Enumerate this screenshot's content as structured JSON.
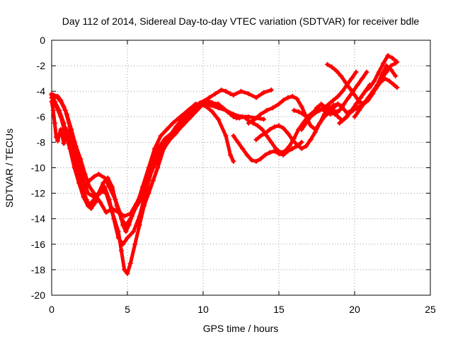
{
  "chart_data": {
    "type": "scatter",
    "title": "Day 112 of 2014, Sidereal Day-to-day VTEC variation (SDTVAR) for receiver bdle",
    "xlabel": "GPS time / hours",
    "ylabel": "SDTVAR / TECUs",
    "xlim": [
      0,
      25
    ],
    "ylim": [
      -20,
      0
    ],
    "xticks": [
      0,
      5,
      10,
      15,
      20,
      25
    ],
    "yticks": [
      0,
      -2,
      -4,
      -6,
      -8,
      -10,
      -12,
      -14,
      -16,
      -18,
      -20
    ],
    "grid": true,
    "marker": "plus",
    "series_color": "#ff0000",
    "series": [
      {
        "x": [
          0.0,
          0.2,
          0.5,
          0.8,
          1.0,
          1.3,
          1.6,
          1.8,
          2.0,
          2.2,
          2.5,
          2.8,
          3.1,
          3.5,
          3.8,
          4.2,
          4.5,
          4.7,
          4.9,
          5.1,
          5.3,
          5.6,
          6.0,
          6.4,
          6.8,
          7.2,
          7.6,
          8.0,
          8.5,
          9.0,
          9.5,
          10.0,
          10.5,
          11.0,
          11.5,
          12.0,
          12.5,
          13.0,
          13.5,
          14.0
        ],
        "y": [
          -4.3,
          -4.8,
          -5.5,
          -6.5,
          -7.5,
          -8.5,
          -9.5,
          -10.5,
          -11.2,
          -11.5,
          -11.0,
          -10.7,
          -10.5,
          -10.8,
          -11.5,
          -12.5,
          -13.5,
          -14.5,
          -15.0,
          -14.5,
          -13.8,
          -13.0,
          -11.5,
          -10.0,
          -8.5,
          -7.5,
          -7.0,
          -6.5,
          -6.0,
          -5.5,
          -5.0,
          -5.0,
          -5.1,
          -5.3,
          -5.5,
          -5.8,
          -6.0,
          -6.0,
          -6.1,
          -6.2
        ]
      },
      {
        "x": [
          0.0,
          0.3,
          0.6,
          0.9,
          1.2,
          1.5,
          1.8,
          2.1,
          2.4,
          2.8,
          3.2,
          3.6,
          4.0,
          4.4,
          4.6,
          4.8,
          5.0,
          5.2,
          5.5,
          5.8,
          6.1,
          6.4,
          6.7,
          7.0,
          7.4,
          7.8,
          8.2,
          8.6,
          9.0,
          9.4,
          9.8,
          10.2,
          10.6,
          11.0,
          11.5,
          11.8,
          12.0
        ],
        "y": [
          -4.5,
          -5.2,
          -6.0,
          -7.3,
          -8.5,
          -10.0,
          -11.2,
          -12.3,
          -13.0,
          -12.5,
          -11.8,
          -12.0,
          -13.5,
          -15.0,
          -16.5,
          -18.0,
          -18.3,
          -17.5,
          -16.0,
          -14.5,
          -13.0,
          -12.0,
          -11.0,
          -10.0,
          -8.5,
          -7.8,
          -7.3,
          -6.7,
          -6.0,
          -5.4,
          -5.0,
          -5.2,
          -5.6,
          -6.2,
          -7.5,
          -9.0,
          -9.5
        ]
      },
      {
        "x": [
          0.0,
          0.3,
          0.6,
          0.9,
          1.2,
          1.5,
          1.8,
          2.1,
          2.4,
          2.8,
          3.2,
          3.5,
          3.8,
          4.1,
          4.4,
          4.7,
          5.0,
          5.4,
          5.8,
          6.2,
          6.6,
          7.0,
          7.5,
          8.0,
          8.5,
          9.0,
          9.5,
          10.0,
          10.4,
          10.8,
          11.2,
          11.5,
          11.8,
          12.0,
          12.5,
          13.0,
          13.5,
          14.0,
          14.5
        ],
        "y": [
          -4.2,
          -4.4,
          -4.8,
          -5.5,
          -6.8,
          -8.0,
          -9.5,
          -11.0,
          -12.0,
          -12.3,
          -12.0,
          -11.5,
          -12.5,
          -14.0,
          -15.5,
          -16.0,
          -15.5,
          -15.0,
          -13.8,
          -12.0,
          -10.0,
          -8.5,
          -7.7,
          -7.2,
          -6.7,
          -6.0,
          -5.3,
          -4.8,
          -4.5,
          -4.2,
          -3.9,
          -4.0,
          -4.2,
          -4.3,
          -4.0,
          -4.2,
          -4.5,
          -4.1,
          -3.9
        ]
      },
      {
        "x": [
          0.0,
          0.1,
          0.2,
          0.3,
          0.4,
          0.5,
          0.6,
          0.7,
          0.8,
          0.9,
          1.0,
          1.2,
          1.4,
          1.6,
          1.8,
          2.0,
          2.3,
          2.6,
          2.9,
          3.1,
          3.4,
          3.7,
          4.0,
          4.3,
          4.6,
          4.9,
          5.2,
          5.5,
          5.9,
          6.3,
          6.6,
          7.0,
          7.4,
          7.8,
          8.2,
          8.6,
          9.0,
          9.4,
          9.8,
          10.2,
          10.6,
          11.0,
          11.4
        ],
        "y": [
          -4.8,
          -5.5,
          -6.5,
          -7.6,
          -7.9,
          -7.4,
          -7.0,
          -7.5,
          -8.1,
          -7.5,
          -7.0,
          -7.5,
          -8.5,
          -9.5,
          -10.5,
          -11.5,
          -12.5,
          -13.2,
          -12.7,
          -12.0,
          -11.2,
          -10.8,
          -11.5,
          -13.0,
          -14.0,
          -14.5,
          -14.0,
          -13.2,
          -12.5,
          -11.5,
          -10.3,
          -9.3,
          -8.5,
          -7.5,
          -6.8,
          -6.2,
          -5.7,
          -5.2,
          -4.9,
          -4.7,
          -4.9,
          -5.2,
          -5.4
        ]
      },
      {
        "x": [
          0.0,
          0.2,
          0.4,
          0.6,
          0.8,
          1.0,
          1.3,
          1.6,
          1.9,
          2.2,
          2.5,
          2.8,
          3.2,
          3.6,
          4.0,
          4.4,
          4.8,
          5.2,
          5.6,
          6.0,
          6.4,
          6.8,
          7.2,
          7.6,
          8.0,
          8.4,
          8.8,
          9.2,
          9.6,
          10.0,
          10.5,
          11.0
        ],
        "y": [
          -4.5,
          -4.5,
          -4.4,
          -4.7,
          -5.2,
          -5.8,
          -7.0,
          -8.3,
          -9.3,
          -10.5,
          -11.5,
          -12.0,
          -12.7,
          -13.5,
          -13.2,
          -13.5,
          -13.8,
          -13.6,
          -12.8,
          -11.8,
          -10.5,
          -9.2,
          -8.5,
          -8.0,
          -7.5,
          -7.0,
          -6.5,
          -6.0,
          -5.5,
          -5.0,
          -4.9,
          -5.0
        ]
      },
      {
        "x": [
          11.0,
          11.3,
          11.6,
          11.8,
          12.0,
          12.2,
          12.4,
          12.6,
          12.8,
          13.0,
          13.3,
          13.6,
          13.9,
          14.2,
          14.5,
          14.8,
          15.1,
          15.4,
          15.7,
          16.0,
          16.3,
          16.6,
          16.9,
          17.2,
          17.5,
          17.8,
          18.1,
          18.4,
          18.7,
          19.0
        ],
        "y": [
          -5.0,
          -5.3,
          -5.6,
          -5.8,
          -6.0,
          -6.1,
          -6.1,
          -6.0,
          -6.1,
          -6.3,
          -6.5,
          -6.7,
          -7.0,
          -7.5,
          -8.0,
          -8.5,
          -8.8,
          -8.7,
          -8.3,
          -7.7,
          -7.0,
          -6.5,
          -6.0,
          -5.7,
          -5.5,
          -5.4,
          -5.6,
          -5.8,
          -5.6,
          -5.5
        ]
      },
      {
        "x": [
          12.0,
          12.3,
          12.6,
          12.9,
          13.2,
          13.5,
          13.8,
          14.1,
          14.4,
          14.7,
          15.0,
          15.3,
          15.6,
          15.9,
          16.2,
          16.5
        ],
        "y": [
          -7.5,
          -8.0,
          -8.5,
          -9.0,
          -9.4,
          -9.5,
          -9.3,
          -9.0,
          -8.8,
          -8.7,
          -8.9,
          -9.0,
          -8.7,
          -8.5,
          -8.3,
          -8.0
        ]
      },
      {
        "x": [
          13.0,
          13.4,
          13.8,
          14.2,
          14.6,
          15.0,
          15.3,
          15.6,
          15.9,
          16.2,
          16.5,
          16.8,
          17.1,
          17.4,
          17.7,
          18.0,
          18.3,
          18.6,
          18.9,
          19.2,
          19.5,
          19.8,
          20.1,
          20.4,
          20.7,
          21.0
        ],
        "y": [
          -6.5,
          -6.2,
          -5.8,
          -5.5,
          -5.3,
          -5.0,
          -4.7,
          -4.5,
          -4.4,
          -4.6,
          -5.2,
          -6.0,
          -6.7,
          -7.0,
          -6.5,
          -5.8,
          -5.2,
          -5.5,
          -6.0,
          -6.3,
          -6.0,
          -5.5,
          -5.0,
          -4.5,
          -4.0,
          -3.5
        ]
      },
      {
        "x": [
          13.5,
          13.8,
          14.1,
          14.4,
          14.7,
          15.0,
          15.3,
          15.6,
          15.9,
          16.2,
          16.5,
          16.8,
          17.1,
          17.4,
          17.7,
          18.0,
          18.3,
          18.6,
          18.9,
          19.2
        ],
        "y": [
          -7.8,
          -7.5,
          -7.3,
          -7.0,
          -6.8,
          -6.7,
          -6.9,
          -7.3,
          -7.8,
          -8.2,
          -8.5,
          -8.3,
          -7.8,
          -7.2,
          -6.5,
          -6.0,
          -5.5,
          -5.1,
          -5.0,
          -5.2
        ]
      },
      {
        "x": [
          16.5,
          16.8,
          17.1,
          17.4,
          17.7,
          18.0,
          18.3,
          18.6,
          18.9,
          19.2,
          19.5,
          19.8,
          20.1
        ],
        "y": [
          -7.0,
          -6.5,
          -6.0,
          -5.7,
          -5.5,
          -5.3,
          -5.0,
          -4.7,
          -4.4,
          -4.0,
          -3.5,
          -3.0,
          -2.5
        ]
      },
      {
        "x": [
          16.0,
          16.3,
          16.6,
          16.9,
          17.2,
          17.5,
          17.8,
          18.1,
          18.4,
          18.7,
          19.0,
          19.3,
          19.6,
          19.9,
          20.2,
          20.5,
          20.8
        ],
        "y": [
          -5.5,
          -5.6,
          -5.8,
          -6.0,
          -5.8,
          -5.3,
          -5.0,
          -5.3,
          -5.7,
          -5.8,
          -5.5,
          -5.0,
          -4.5,
          -4.0,
          -3.5,
          -3.0,
          -2.5
        ]
      },
      {
        "x": [
          18.2,
          18.5,
          18.8,
          19.1,
          19.4,
          19.7,
          20.0,
          20.3,
          20.6,
          20.9,
          21.2,
          21.5,
          21.8,
          22.1,
          22.4,
          22.7
        ],
        "y": [
          -1.9,
          -2.1,
          -2.4,
          -2.8,
          -3.3,
          -3.8,
          -4.3,
          -4.8,
          -5.0,
          -4.7,
          -4.2,
          -3.5,
          -2.7,
          -2.0,
          -2.3,
          -2.8
        ]
      },
      {
        "x": [
          18.0,
          18.3,
          18.6,
          18.9,
          19.2,
          19.5,
          19.8,
          20.1,
          20.4,
          20.7,
          21.0,
          21.3,
          21.6,
          21.9,
          22.2,
          22.5,
          22.8
        ],
        "y": [
          -6.0,
          -5.7,
          -5.3,
          -5.0,
          -5.3,
          -5.7,
          -5.5,
          -5.0,
          -4.5,
          -4.0,
          -3.7,
          -3.2,
          -2.5,
          -1.8,
          -1.2,
          -1.4,
          -1.7
        ]
      },
      {
        "x": [
          19.0,
          19.3,
          19.6,
          19.9,
          20.2,
          20.5,
          20.8,
          21.1,
          21.4,
          21.7,
          22.0,
          22.3,
          22.6,
          22.8
        ],
        "y": [
          -6.5,
          -6.2,
          -5.8,
          -5.5,
          -5.3,
          -5.0,
          -4.7,
          -4.3,
          -3.8,
          -3.3,
          -3.0,
          -3.2,
          -3.5,
          -3.7
        ]
      },
      {
        "x": [
          20.0,
          20.3,
          20.6,
          20.9,
          21.2,
          21.5,
          21.8,
          22.1,
          22.4,
          22.7
        ],
        "y": [
          -6.0,
          -5.5,
          -5.0,
          -4.5,
          -4.0,
          -3.5,
          -3.0,
          -2.5,
          -2.0,
          -1.8
        ]
      }
    ]
  }
}
